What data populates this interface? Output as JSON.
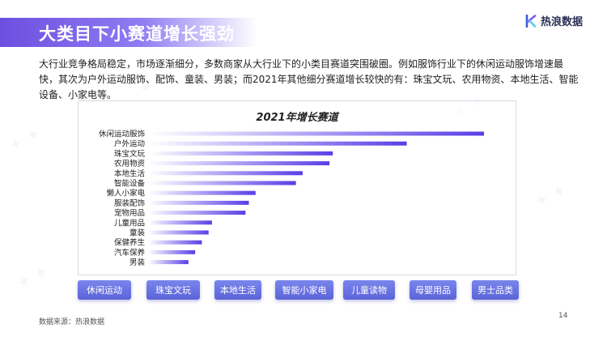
{
  "header": {
    "title": "大类目下小赛道增长强劲",
    "logo_text": "热浪数据"
  },
  "intro": "大行业竞争格局稳定，市场逐渐细分，多数商家从大行业下的小类目赛道突围破圈。例如服饰行业下的休闲运动服饰增速最快，其次为户外运动服饰、配饰、童装、男装；而2021年其他细分赛道增长较快的有：珠宝文玩、农用物资、本地生活、智能设备、小家电等。",
  "chart_data": {
    "type": "bar",
    "orientation": "horizontal",
    "title": "2021年增长赛道",
    "categories": [
      "休闲运动服饰",
      "户外运动",
      "珠宝文玩",
      "农用物资",
      "本地生活",
      "智能设备",
      "懒人小家电",
      "服装配饰",
      "宠物用品",
      "儿童用品",
      "童装",
      "保健养生",
      "汽车保养",
      "男装"
    ],
    "values": [
      100,
      77,
      55,
      54,
      46,
      44,
      32,
      30,
      29,
      19,
      18,
      16,
      14,
      12
    ],
    "xlabel": "",
    "ylabel": "",
    "grid": false,
    "legend": "none",
    "bar_gradient": [
      "#ffffff",
      "#5a3ee6"
    ]
  },
  "tags": [
    "休闲运动",
    "珠宝文玩",
    "本地生活",
    "智能小家电",
    "儿童读物",
    "母婴用品",
    "男士品类"
  ],
  "footer": {
    "source": "数据来源：热浪数据",
    "page": "14"
  },
  "colors": {
    "title_bar": "#6d4fe0",
    "tag": "#6670e0",
    "bar_end": "#5a3ee6"
  }
}
